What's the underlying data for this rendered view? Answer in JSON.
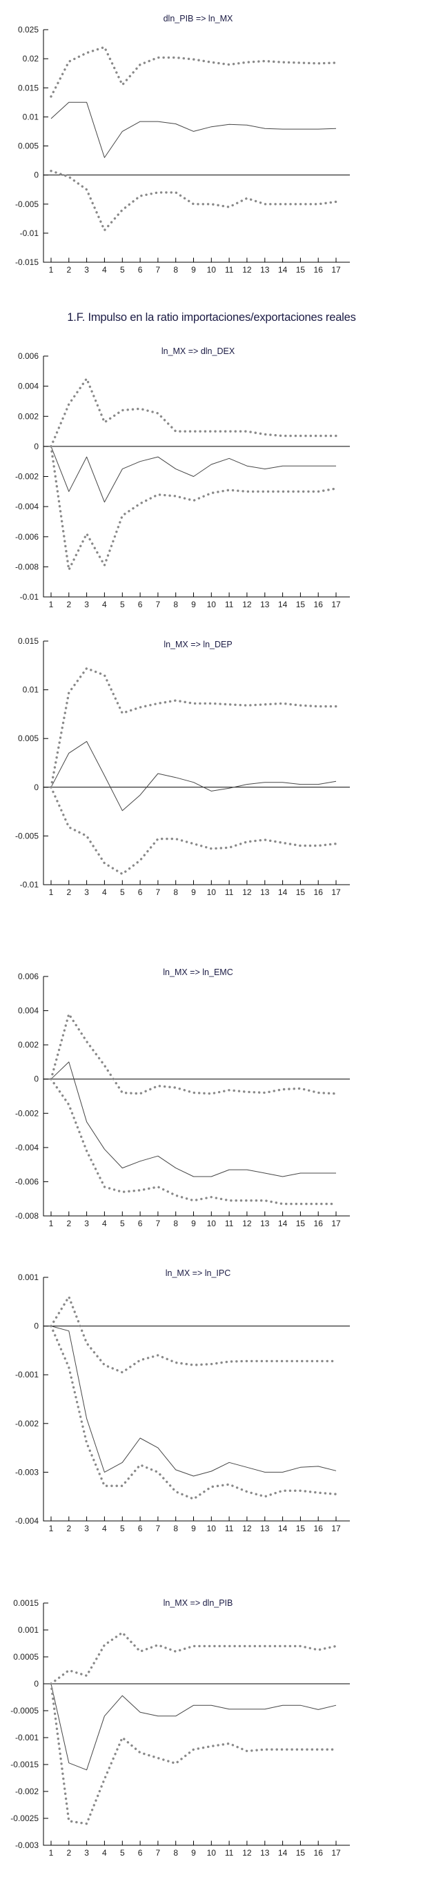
{
  "page": {
    "background": "#ffffff"
  },
  "section_heading": "1.F. Impulso en la ratio importaciones/exportaciones reales",
  "colors": {
    "band": "#898989",
    "line": "#454545",
    "axis": "#000000",
    "tick_label": "#1c1c1c",
    "title": "#1b1b44"
  },
  "chart_data": [
    {
      "id": "c1",
      "type": "line",
      "title": "dln_PIB => ln_MX",
      "xlabel": "",
      "ylabel": "",
      "x": [
        1,
        2,
        3,
        4,
        5,
        6,
        7,
        8,
        9,
        10,
        11,
        12,
        13,
        14,
        15,
        16,
        17
      ],
      "ylim": [
        -0.015,
        0.025
      ],
      "grid": false,
      "legend": "none",
      "yticks": {
        "values": [
          0.025,
          0.02,
          0.015,
          0.01,
          0.005,
          0,
          -0.005,
          -0.01,
          -0.015
        ],
        "labels": [
          "0.025",
          "0.02",
          "0.015",
          "0.01",
          "0.005",
          "0",
          "-0.005",
          "-0.01",
          "-0.015"
        ]
      },
      "series": [
        {
          "name": "upper_confidence_band",
          "style": "dotted",
          "values": [
            0.0135,
            0.0195,
            0.021,
            0.022,
            0.0155,
            0.019,
            0.0202,
            0.0202,
            0.0199,
            0.0194,
            0.019,
            0.0194,
            0.0196,
            0.0194,
            0.0193,
            0.0192,
            0.0193
          ]
        },
        {
          "name": "impulse_response",
          "style": "solid",
          "values": [
            0.0097,
            0.0125,
            0.0125,
            0.003,
            0.0075,
            0.0092,
            0.0092,
            0.0088,
            0.0075,
            0.0083,
            0.0087,
            0.0086,
            0.008,
            0.0079,
            0.0079,
            0.0079,
            0.008
          ]
        },
        {
          "name": "lower_confidence_band",
          "style": "dotted",
          "values": [
            0.0007,
            -0.0003,
            -0.0025,
            -0.0095,
            -0.006,
            -0.0036,
            -0.003,
            -0.003,
            -0.005,
            -0.005,
            -0.0055,
            -0.004,
            -0.005,
            -0.005,
            -0.005,
            -0.005,
            -0.0046
          ]
        }
      ]
    },
    {
      "id": "c2",
      "type": "line",
      "title": "ln_MX => dln_DEX",
      "xlabel": "",
      "ylabel": "",
      "x": [
        1,
        2,
        3,
        4,
        5,
        6,
        7,
        8,
        9,
        10,
        11,
        12,
        13,
        14,
        15,
        16,
        17
      ],
      "ylim": [
        -0.01,
        0.006
      ],
      "grid": false,
      "legend": "none",
      "yticks": {
        "values": [
          0.006,
          0.004,
          0.002,
          0,
          -0.002,
          -0.004,
          -0.006,
          -0.008,
          -0.01
        ],
        "labels": [
          "0.006",
          "0.004",
          "0.002",
          "0",
          "-0.002",
          "-0.004",
          "-0.006",
          "-0.008",
          "-0.01"
        ]
      },
      "series": [
        {
          "name": "upper_confidence_band",
          "style": "dotted",
          "values": [
            0,
            0.0028,
            0.0045,
            0.0016,
            0.0024,
            0.0025,
            0.0022,
            0.001,
            0.001,
            0.001,
            0.001,
            0.001,
            0.0008,
            0.0007,
            0.0007,
            0.0007,
            0.0007
          ]
        },
        {
          "name": "impulse_response",
          "style": "solid",
          "values": [
            0,
            -0.003,
            -0.0007,
            -0.0037,
            -0.0015,
            -0.001,
            -0.0007,
            -0.0015,
            -0.002,
            -0.0012,
            -0.0008,
            -0.0013,
            -0.0015,
            -0.0013,
            -0.0013,
            -0.0013,
            -0.0013
          ]
        },
        {
          "name": "lower_confidence_band",
          "style": "dotted",
          "values": [
            0,
            -0.0082,
            -0.0058,
            -0.0079,
            -0.0046,
            -0.0038,
            -0.0032,
            -0.0033,
            -0.0036,
            -0.0031,
            -0.0029,
            -0.003,
            -0.003,
            -0.003,
            -0.003,
            -0.003,
            -0.0028
          ]
        }
      ]
    },
    {
      "id": "c3",
      "type": "line",
      "title": "ln_MX => ln_DEP",
      "xlabel": "",
      "ylabel": "",
      "x": [
        1,
        2,
        3,
        4,
        5,
        6,
        7,
        8,
        9,
        10,
        11,
        12,
        13,
        14,
        15,
        16,
        17
      ],
      "ylim": [
        -0.01,
        0.015
      ],
      "grid": false,
      "legend": "none",
      "yticks": {
        "values": [
          0.015,
          0.01,
          0.005,
          0,
          -0.005,
          -0.01
        ],
        "labels": [
          "0.015",
          "0.01",
          "0.005",
          "0",
          "-0.005",
          "-0.01"
        ]
      },
      "series": [
        {
          "name": "upper_confidence_band",
          "style": "dotted",
          "values": [
            0,
            0.0097,
            0.0122,
            0.0115,
            0.0076,
            0.0082,
            0.0086,
            0.0089,
            0.0086,
            0.0086,
            0.0085,
            0.0084,
            0.0085,
            0.0086,
            0.0084,
            0.0083,
            0.0083
          ]
        },
        {
          "name": "impulse_response",
          "style": "solid",
          "values": [
            0,
            0.0035,
            0.0047,
            0.0012,
            -0.0024,
            -0.0008,
            0.0014,
            0.001,
            0.0005,
            -0.0004,
            -0.0001,
            0.0003,
            0.0005,
            0.0005,
            0.0003,
            0.0003,
            0.0006
          ]
        },
        {
          "name": "lower_confidence_band",
          "style": "dotted",
          "values": [
            0,
            -0.0041,
            -0.005,
            -0.0078,
            -0.0089,
            -0.0075,
            -0.0053,
            -0.0053,
            -0.0058,
            -0.0063,
            -0.0062,
            -0.0056,
            -0.0054,
            -0.0057,
            -0.006,
            -0.006,
            -0.0058
          ]
        }
      ]
    },
    {
      "id": "c4",
      "type": "line",
      "title": "ln_MX => ln_EMC",
      "xlabel": "",
      "ylabel": "",
      "x": [
        1,
        2,
        3,
        4,
        5,
        6,
        7,
        8,
        9,
        10,
        11,
        12,
        13,
        14,
        15,
        16,
        17
      ],
      "ylim": [
        -0.008,
        0.006
      ],
      "grid": false,
      "legend": "none",
      "yticks": {
        "values": [
          0.006,
          0.004,
          0.002,
          0,
          -0.002,
          -0.004,
          -0.006,
          -0.008
        ],
        "labels": [
          "0.006",
          "0.004",
          "0.002",
          "0",
          "-0.002",
          "-0.004",
          "-0.006",
          "-0.008"
        ]
      },
      "series": [
        {
          "name": "upper_confidence_band",
          "style": "dotted",
          "values": [
            0,
            0.0038,
            0.0022,
            0.0008,
            -0.0008,
            -0.00085,
            -0.0004,
            -0.0005,
            -0.0008,
            -0.00085,
            -0.00065,
            -0.00075,
            -0.0008,
            -0.0006,
            -0.00055,
            -0.0008,
            -0.00085
          ]
        },
        {
          "name": "impulse_response",
          "style": "solid",
          "values": [
            0,
            0.001,
            -0.0025,
            -0.0041,
            -0.0052,
            -0.0048,
            -0.0045,
            -0.0052,
            -0.0057,
            -0.0057,
            -0.0053,
            -0.0053,
            -0.0055,
            -0.0057,
            -0.0055,
            -0.0055,
            -0.0055
          ]
        },
        {
          "name": "lower_confidence_band",
          "style": "dotted",
          "values": [
            0,
            -0.0015,
            -0.0042,
            -0.0063,
            -0.0066,
            -0.0065,
            -0.0063,
            -0.0068,
            -0.0071,
            -0.0069,
            -0.0071,
            -0.0071,
            -0.0071,
            -0.0073,
            -0.0073,
            -0.0073,
            -0.0073
          ]
        }
      ]
    },
    {
      "id": "c5",
      "type": "line",
      "title": "ln_MX => ln_IPC",
      "xlabel": "",
      "ylabel": "",
      "x": [
        1,
        2,
        3,
        4,
        5,
        6,
        7,
        8,
        9,
        10,
        11,
        12,
        13,
        14,
        15,
        16,
        17
      ],
      "ylim": [
        -0.004,
        0.001
      ],
      "grid": false,
      "legend": "none",
      "yticks": {
        "values": [
          0.001,
          0,
          -0.001,
          -0.002,
          -0.003,
          -0.004
        ],
        "labels": [
          "0.001",
          "0",
          "-0.001",
          "-0.002",
          "-0.003",
          "-0.004"
        ]
      },
      "series": [
        {
          "name": "upper_confidence_band",
          "style": "dotted",
          "values": [
            0,
            0.0006,
            -0.00035,
            -0.0008,
            -0.00095,
            -0.0007,
            -0.0006,
            -0.00075,
            -0.0008,
            -0.00078,
            -0.00073,
            -0.00072,
            -0.00072,
            -0.00072,
            -0.00072,
            -0.00072,
            -0.00072
          ]
        },
        {
          "name": "impulse_response",
          "style": "solid",
          "values": [
            0,
            -0.0001,
            -0.0019,
            -0.003,
            -0.0028,
            -0.0023,
            -0.0025,
            -0.00295,
            -0.00308,
            -0.00298,
            -0.0028,
            -0.0029,
            -0.003,
            -0.003,
            -0.0029,
            -0.00288,
            -0.00297
          ]
        },
        {
          "name": "lower_confidence_band",
          "style": "dotted",
          "values": [
            0,
            -0.00085,
            -0.0024,
            -0.00328,
            -0.00328,
            -0.00285,
            -0.003,
            -0.0034,
            -0.00355,
            -0.0033,
            -0.00325,
            -0.0034,
            -0.0035,
            -0.00338,
            -0.00338,
            -0.00342,
            -0.00345
          ]
        }
      ]
    },
    {
      "id": "c6",
      "type": "line",
      "title": "ln_MX => dln_PIB",
      "xlabel": "",
      "ylabel": "",
      "x": [
        1,
        2,
        3,
        4,
        5,
        6,
        7,
        8,
        9,
        10,
        11,
        12,
        13,
        14,
        15,
        16,
        17
      ],
      "ylim": [
        -0.003,
        0.0015
      ],
      "grid": false,
      "legend": "none",
      "yticks": {
        "values": [
          0.0015,
          0.001,
          0.0005,
          0,
          -0.0005,
          -0.001,
          -0.0015,
          -0.002,
          -0.0025,
          -0.003
        ],
        "labels": [
          "0.0015",
          "0.001",
          "0.0005",
          "0",
          "-0.0005",
          "-0.001",
          "-0.0015",
          "-0.002",
          "-0.0025",
          "-0.003"
        ]
      },
      "series": [
        {
          "name": "upper_confidence_band",
          "style": "dotted",
          "values": [
            0,
            0.00025,
            0.00015,
            0.00072,
            0.00095,
            0.0006,
            0.00072,
            0.0006,
            0.0007,
            0.0007,
            0.0007,
            0.0007,
            0.0007,
            0.0007,
            0.0007,
            0.00063,
            0.0007
          ]
        },
        {
          "name": "impulse_response",
          "style": "solid",
          "values": [
            0,
            -0.00147,
            -0.0016,
            -0.0006,
            -0.00022,
            -0.00053,
            -0.0006,
            -0.0006,
            -0.0004,
            -0.0004,
            -0.00047,
            -0.00047,
            -0.00047,
            -0.0004,
            -0.0004,
            -0.00048,
            -0.0004
          ]
        },
        {
          "name": "lower_confidence_band",
          "style": "dotted",
          "values": [
            0,
            -0.00255,
            -0.0026,
            -0.00177,
            -0.001,
            -0.00128,
            -0.00138,
            -0.00148,
            -0.00122,
            -0.00116,
            -0.00111,
            -0.00125,
            -0.00122,
            -0.00122,
            -0.00122,
            -0.00122,
            -0.00122
          ]
        }
      ]
    }
  ]
}
